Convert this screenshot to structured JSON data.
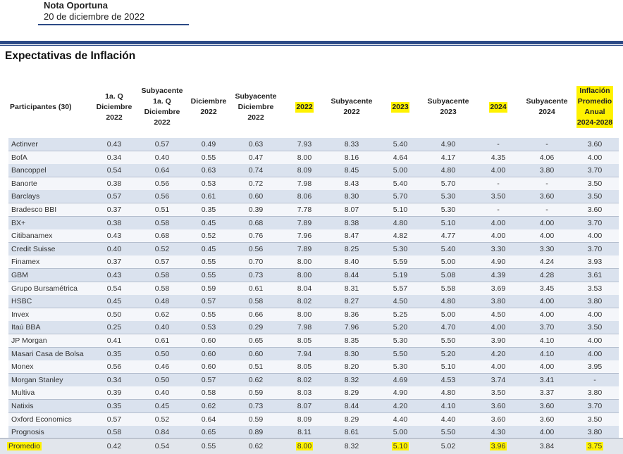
{
  "header": {
    "title": "Nota Oportuna",
    "date": "20 de diciembre de 2022"
  },
  "section_title": "Expectativas de Inflación",
  "columns": [
    {
      "label": "Participantes (30)",
      "highlight": false
    },
    {
      "label": "1a. Q\nDiciembre\n2022",
      "highlight": false
    },
    {
      "label": "Subyacente\n1a. Q\nDiciembre\n2022",
      "highlight": false
    },
    {
      "label": "Diciembre\n2022",
      "highlight": false
    },
    {
      "label": "Subyacente\nDiciembre\n2022",
      "highlight": false
    },
    {
      "label": "2022",
      "highlight": true
    },
    {
      "label": "Subyacente\n2022",
      "highlight": false
    },
    {
      "label": "2023",
      "highlight": true
    },
    {
      "label": "Subyacente\n2023",
      "highlight": false
    },
    {
      "label": "2024",
      "highlight": true
    },
    {
      "label": "Subyacente\n2024",
      "highlight": false
    },
    {
      "label": "Inflación\nPromedio\nAnual\n2024-2028",
      "highlight": true
    }
  ],
  "rows": [
    [
      "Actinver",
      "0.43",
      "0.57",
      "0.49",
      "0.63",
      "7.93",
      "8.33",
      "5.40",
      "4.90",
      "-",
      "-",
      "3.60"
    ],
    [
      "BofA",
      "0.34",
      "0.40",
      "0.55",
      "0.47",
      "8.00",
      "8.16",
      "4.64",
      "4.17",
      "4.35",
      "4.06",
      "4.00"
    ],
    [
      "Bancoppel",
      "0.54",
      "0.64",
      "0.63",
      "0.74",
      "8.09",
      "8.45",
      "5.00",
      "4.80",
      "4.00",
      "3.80",
      "3.70"
    ],
    [
      "Banorte",
      "0.38",
      "0.56",
      "0.53",
      "0.72",
      "7.98",
      "8.43",
      "5.40",
      "5.70",
      "-",
      "-",
      "3.50"
    ],
    [
      "Barclays",
      "0.57",
      "0.56",
      "0.61",
      "0.60",
      "8.06",
      "8.30",
      "5.70",
      "5.30",
      "3.50",
      "3.60",
      "3.50"
    ],
    [
      "Bradesco BBI",
      "0.37",
      "0.51",
      "0.35",
      "0.39",
      "7.78",
      "8.07",
      "5.10",
      "5.30",
      "-",
      "-",
      "3.60"
    ],
    [
      "BX+",
      "0.38",
      "0.58",
      "0.45",
      "0.68",
      "7.89",
      "8.38",
      "4.80",
      "5.10",
      "4.00",
      "4.00",
      "3.70"
    ],
    [
      "Citibanamex",
      "0.43",
      "0.68",
      "0.52",
      "0.76",
      "7.96",
      "8.47",
      "4.82",
      "4.77",
      "4.00",
      "4.00",
      "4.00"
    ],
    [
      "Credit Suisse",
      "0.40",
      "0.52",
      "0.45",
      "0.56",
      "7.89",
      "8.25",
      "5.30",
      "5.40",
      "3.30",
      "3.30",
      "3.70"
    ],
    [
      "Finamex",
      "0.37",
      "0.57",
      "0.55",
      "0.70",
      "8.00",
      "8.40",
      "5.59",
      "5.00",
      "4.90",
      "4.24",
      "3.93"
    ],
    [
      "GBM",
      "0.43",
      "0.58",
      "0.55",
      "0.73",
      "8.00",
      "8.44",
      "5.19",
      "5.08",
      "4.39",
      "4.28",
      "3.61"
    ],
    [
      "Grupo Bursamétrica",
      "0.54",
      "0.58",
      "0.59",
      "0.61",
      "8.04",
      "8.31",
      "5.57",
      "5.58",
      "3.69",
      "3.45",
      "3.53"
    ],
    [
      "HSBC",
      "0.45",
      "0.48",
      "0.57",
      "0.58",
      "8.02",
      "8.27",
      "4.50",
      "4.80",
      "3.80",
      "4.00",
      "3.80"
    ],
    [
      "Invex",
      "0.50",
      "0.62",
      "0.55",
      "0.66",
      "8.00",
      "8.36",
      "5.25",
      "5.00",
      "4.50",
      "4.00",
      "4.00"
    ],
    [
      "Itaú BBA",
      "0.25",
      "0.40",
      "0.53",
      "0.29",
      "7.98",
      "7.96",
      "5.20",
      "4.70",
      "4.00",
      "3.70",
      "3.50"
    ],
    [
      "JP Morgan",
      "0.41",
      "0.61",
      "0.60",
      "0.65",
      "8.05",
      "8.35",
      "5.30",
      "5.50",
      "3.90",
      "4.10",
      "4.00"
    ],
    [
      "Masari Casa de Bolsa",
      "0.35",
      "0.50",
      "0.60",
      "0.60",
      "7.94",
      "8.30",
      "5.50",
      "5.20",
      "4.20",
      "4.10",
      "4.00"
    ],
    [
      "Monex",
      "0.56",
      "0.46",
      "0.60",
      "0.51",
      "8.05",
      "8.20",
      "5.30",
      "5.10",
      "4.00",
      "4.00",
      "3.95"
    ],
    [
      "Morgan Stanley",
      "0.34",
      "0.50",
      "0.57",
      "0.62",
      "8.02",
      "8.32",
      "4.69",
      "4.53",
      "3.74",
      "3.41",
      "-"
    ],
    [
      "Multiva",
      "0.39",
      "0.40",
      "0.58",
      "0.59",
      "8.03",
      "8.29",
      "4.90",
      "4.80",
      "3.50",
      "3.37",
      "3.80"
    ],
    [
      "Natixis",
      "0.35",
      "0.45",
      "0.62",
      "0.73",
      "8.07",
      "8.44",
      "4.20",
      "4.10",
      "3.60",
      "3.60",
      "3.70"
    ],
    [
      "Oxford Economics",
      "0.57",
      "0.52",
      "0.64",
      "0.59",
      "8.09",
      "8.29",
      "4.40",
      "4.40",
      "3.60",
      "3.60",
      "3.50"
    ],
    [
      "Prognosis",
      "0.58",
      "0.84",
      "0.65",
      "0.89",
      "8.11",
      "8.61",
      "5.00",
      "5.50",
      "4.30",
      "4.00",
      "3.80"
    ]
  ],
  "average": [
    "Promedio",
    "0.42",
    "0.54",
    "0.55",
    "0.62",
    "8.00",
    "8.32",
    "5.10",
    "5.02",
    "3.96",
    "3.84",
    "3.75"
  ],
  "average_highlight": [
    0,
    5,
    7,
    9,
    11
  ],
  "colors": {
    "band": "#2c4a86",
    "highlight": "#fff200",
    "row_even": "#dae2ee",
    "row_odd": "#f4f6fa"
  }
}
